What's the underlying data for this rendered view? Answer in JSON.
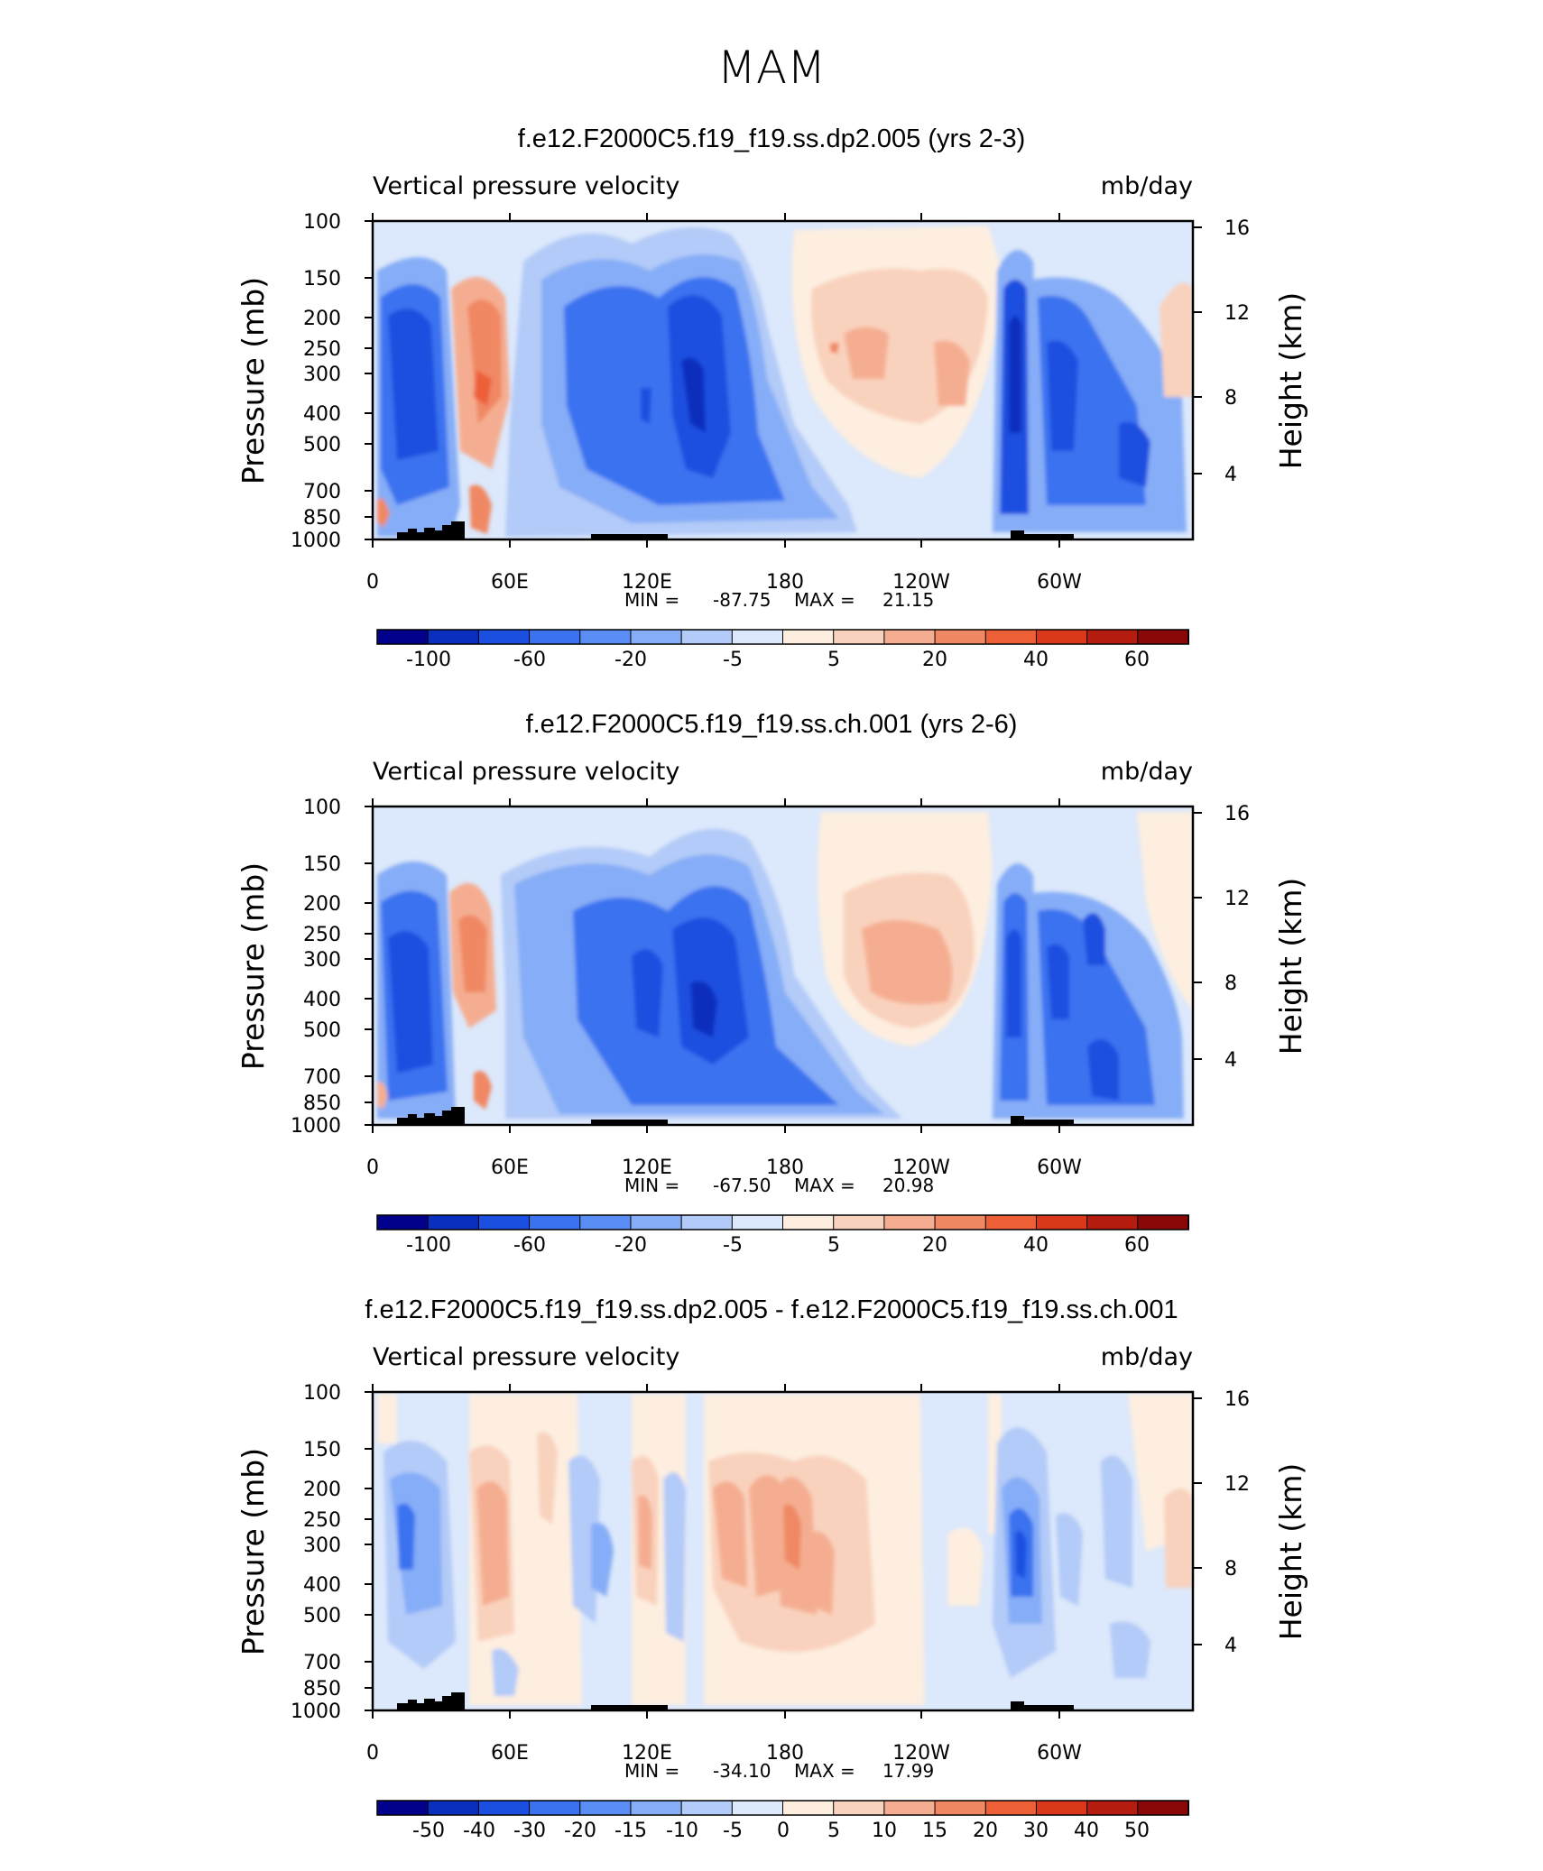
{
  "page_title": "MAM",
  "chart_data": [
    {
      "type": "heatmap",
      "title": "f.e12.F2000C5.f19_f19.ss.dp2.005 (yrs 2-3)",
      "left_label": "Vertical pressure velocity",
      "right_label": "mb/day",
      "ylabel": "Pressure (mb)",
      "y2label": "Height (km)",
      "pressure_ticks": [
        "100",
        "150",
        "200",
        "250",
        "300",
        "400",
        "500",
        "700",
        "850",
        "1000"
      ],
      "height_ticks": [
        "16",
        "12",
        "8",
        "4"
      ],
      "x_ticks": [
        "0",
        "60E",
        "120E",
        "180",
        "120W",
        "60W"
      ],
      "min_label": "MIN =",
      "min_value": "-87.75",
      "max_label": "MAX =",
      "max_value": "21.15",
      "colorbar_labels": [
        "-100",
        "-60",
        "-20",
        "-5",
        "5",
        "20",
        "40",
        "60"
      ],
      "levels": [
        -120,
        -100,
        -80,
        -60,
        -40,
        -20,
        -10,
        -5,
        0,
        5,
        10,
        20,
        30,
        40,
        50,
        60
      ],
      "cells": [
        {
          "lon": 20,
          "p": 300,
          "value": -60
        },
        {
          "lon": 35,
          "p": 350,
          "value": -45
        },
        {
          "lon": 55,
          "p": 350,
          "value": 15
        },
        {
          "lon": 145,
          "p": 350,
          "value": -70
        },
        {
          "lon": 200,
          "p": 300,
          "value": 10
        },
        {
          "lon": 225,
          "p": 300,
          "value": 10
        },
        {
          "lon": 280,
          "p": 300,
          "value": -85
        },
        {
          "lon": 295,
          "p": 400,
          "value": -50
        }
      ]
    },
    {
      "type": "heatmap",
      "title": "f.e12.F2000C5.f19_f19.ss.ch.001 (yrs 2-6)",
      "left_label": "Vertical pressure velocity",
      "right_label": "mb/day",
      "ylabel": "Pressure (mb)",
      "y2label": "Height (km)",
      "pressure_ticks": [
        "100",
        "150",
        "200",
        "250",
        "300",
        "400",
        "500",
        "700",
        "850",
        "1000"
      ],
      "height_ticks": [
        "16",
        "12",
        "8",
        "4"
      ],
      "x_ticks": [
        "0",
        "60E",
        "120E",
        "180",
        "120W",
        "60W"
      ],
      "min_label": "MIN =",
      "min_value": "-67.50",
      "max_label": "MAX =",
      "max_value": "20.98",
      "colorbar_labels": [
        "-100",
        "-60",
        "-20",
        "-5",
        "5",
        "20",
        "40",
        "60"
      ],
      "levels": [
        -120,
        -100,
        -80,
        -60,
        -40,
        -20,
        -10,
        -5,
        0,
        5,
        10,
        20,
        30,
        40,
        50,
        60
      ],
      "cells": [
        {
          "lon": 20,
          "p": 300,
          "value": -40
        },
        {
          "lon": 145,
          "p": 400,
          "value": -65
        },
        {
          "lon": 210,
          "p": 300,
          "value": 12
        },
        {
          "lon": 280,
          "p": 400,
          "value": -45
        }
      ]
    },
    {
      "type": "heatmap",
      "title": "f.e12.F2000C5.f19_f19.ss.dp2.005 - f.e12.F2000C5.f19_f19.ss.ch.001",
      "left_label": "Vertical pressure velocity",
      "right_label": "mb/day",
      "ylabel": "Pressure (mb)",
      "y2label": "Height (km)",
      "pressure_ticks": [
        "100",
        "150",
        "200",
        "250",
        "300",
        "400",
        "500",
        "700",
        "850",
        "1000"
      ],
      "height_ticks": [
        "16",
        "12",
        "8",
        "4"
      ],
      "x_ticks": [
        "0",
        "60E",
        "120E",
        "180",
        "120W",
        "60W"
      ],
      "min_label": "MIN =",
      "min_value": "-34.10",
      "max_label": "MAX =",
      "max_value": "17.99",
      "colorbar_labels": [
        "-50",
        "-40",
        "-30",
        "-20",
        "-15",
        "-10",
        "-5",
        "0",
        "5",
        "10",
        "15",
        "20",
        "30",
        "40",
        "50"
      ],
      "levels": [
        -60,
        -50,
        -40,
        -30,
        -20,
        -15,
        -10,
        -5,
        0,
        5,
        10,
        15,
        20,
        30,
        40,
        50,
        60
      ],
      "cells": [
        {
          "lon": 280,
          "p": 300,
          "value": -34
        },
        {
          "lon": 180,
          "p": 300,
          "value": 18
        },
        {
          "lon": 55,
          "p": 300,
          "value": 8
        }
      ]
    }
  ],
  "colorbar_colors": [
    "#00008b",
    "#0a2ebd",
    "#1a4fe0",
    "#3a72f0",
    "#5a8ef5",
    "#86adf7",
    "#b3cbf8",
    "#dce8fb",
    "#fdeee0",
    "#f9d2bd",
    "#f5ad91",
    "#f08864",
    "#ec5f37",
    "#d9391a",
    "#b41c10",
    "#8b0808"
  ],
  "colorbar_colors_diff": [
    "#00008b",
    "#0a2ebd",
    "#1a4fe0",
    "#3a72f0",
    "#5a8ef5",
    "#86adf7",
    "#b3cbf8",
    "#dce8fb",
    "#fdeee0",
    "#f9d2bd",
    "#f5ad91",
    "#f08864",
    "#ec5f37",
    "#d9391a",
    "#b41c10",
    "#8b0808"
  ]
}
